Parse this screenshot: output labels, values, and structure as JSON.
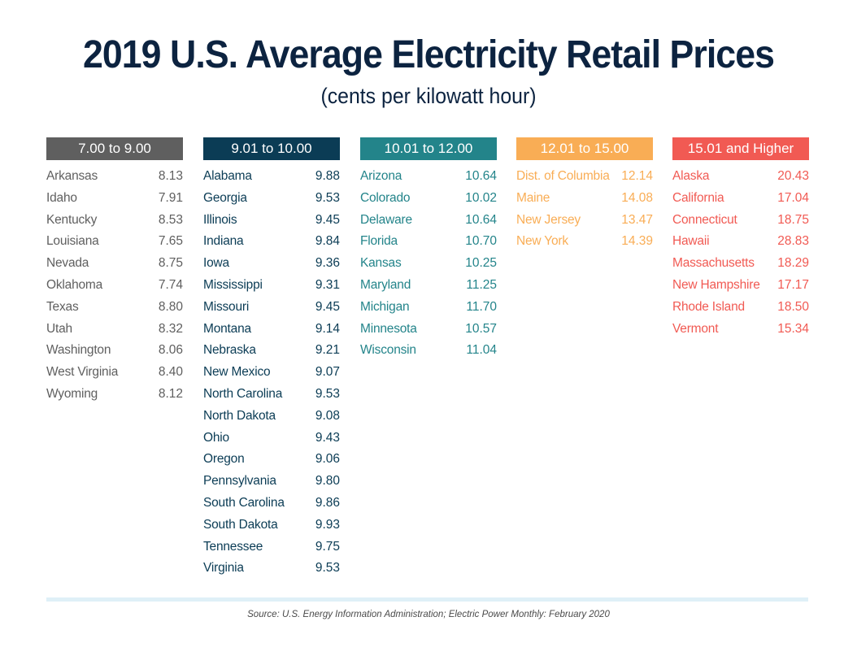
{
  "header": {
    "title": "2019 U.S. Average Electricity Retail Prices",
    "subtitle": "(cents per kilowatt hour)"
  },
  "footer": {
    "source": "Source: U.S. Energy Information Administration; Electric Power Monthly: February 2020"
  },
  "chart_data": {
    "type": "table",
    "title": "2019 U.S. Average Electricity Retail Prices",
    "subtitle": "(cents per kilowatt hour)",
    "units": "cents per kilowatt hour",
    "groups": [
      {
        "label": "7.00 to 9.00",
        "header_color": "#5f5f5f",
        "text_color": "#5f5f5f",
        "rows": [
          {
            "state": "Arkansas",
            "price": "8.13"
          },
          {
            "state": "Idaho",
            "price": "7.91"
          },
          {
            "state": "Kentucky",
            "price": "8.53"
          },
          {
            "state": "Louisiana",
            "price": "7.65"
          },
          {
            "state": "Nevada",
            "price": "8.75"
          },
          {
            "state": "Oklahoma",
            "price": "7.74"
          },
          {
            "state": "Texas",
            "price": "8.80"
          },
          {
            "state": "Utah",
            "price": "8.32"
          },
          {
            "state": "Washington",
            "price": "8.06"
          },
          {
            "state": "West Virginia",
            "price": "8.40"
          },
          {
            "state": "Wyoming",
            "price": "8.12"
          }
        ]
      },
      {
        "label": "9.01 to 10.00",
        "header_color": "#0b3c55",
        "text_color": "#0b3c55",
        "rows": [
          {
            "state": "Alabama",
            "price": "9.88"
          },
          {
            "state": "Georgia",
            "price": "9.53"
          },
          {
            "state": "Illinois",
            "price": "9.45"
          },
          {
            "state": "Indiana",
            "price": "9.84"
          },
          {
            "state": "Iowa",
            "price": "9.36"
          },
          {
            "state": "Mississippi",
            "price": "9.31"
          },
          {
            "state": "Missouri",
            "price": "9.45"
          },
          {
            "state": "Montana",
            "price": "9.14"
          },
          {
            "state": "Nebraska",
            "price": "9.21"
          },
          {
            "state": "New Mexico",
            "price": "9.07"
          },
          {
            "state": "North Carolina",
            "price": "9.53"
          },
          {
            "state": "North Dakota",
            "price": "9.08"
          },
          {
            "state": "Ohio",
            "price": "9.43"
          },
          {
            "state": "Oregon",
            "price": "9.06"
          },
          {
            "state": "Pennsylvania",
            "price": "9.80"
          },
          {
            "state": "South Carolina",
            "price": "9.86"
          },
          {
            "state": "South Dakota",
            "price": "9.93"
          },
          {
            "state": "Tennessee",
            "price": "9.75"
          },
          {
            "state": "Virginia",
            "price": "9.53"
          }
        ]
      },
      {
        "label": "10.01 to 12.00",
        "header_color": "#23848a",
        "text_color": "#23848a",
        "rows": [
          {
            "state": "Arizona",
            "price": "10.64"
          },
          {
            "state": "Colorado",
            "price": "10.02"
          },
          {
            "state": "Delaware",
            "price": "10.64"
          },
          {
            "state": "Florida",
            "price": "10.70"
          },
          {
            "state": "Kansas",
            "price": "10.25"
          },
          {
            "state": "Maryland",
            "price": "11.25"
          },
          {
            "state": "Michigan",
            "price": "11.70"
          },
          {
            "state": "Minnesota",
            "price": "10.57"
          },
          {
            "state": "Wisconsin",
            "price": "11.04"
          }
        ]
      },
      {
        "label": "12.01 to 15.00",
        "header_color": "#f9ad55",
        "text_color": "#f9ad55",
        "rows": [
          {
            "state": "Dist. of Columbia",
            "price": "12.14"
          },
          {
            "state": "Maine",
            "price": "14.08"
          },
          {
            "state": "New Jersey",
            "price": "13.47"
          },
          {
            "state": "New York",
            "price": "14.39"
          }
        ]
      },
      {
        "label": "15.01 and Higher",
        "header_color": "#f15a53",
        "text_color": "#f15a53",
        "rows": [
          {
            "state": "Alaska",
            "price": "20.43"
          },
          {
            "state": "California",
            "price": "17.04"
          },
          {
            "state": "Connecticut",
            "price": "18.75"
          },
          {
            "state": "Hawaii",
            "price": "28.83"
          },
          {
            "state": "Massachusetts",
            "price": "18.29"
          },
          {
            "state": "New Hampshire",
            "price": "17.17"
          },
          {
            "state": "Rhode Island",
            "price": "18.50"
          },
          {
            "state": "Vermont",
            "price": "15.34"
          }
        ]
      }
    ],
    "source": "Source: U.S. Energy Information Administration; Electric Power Monthly: February 2020"
  }
}
